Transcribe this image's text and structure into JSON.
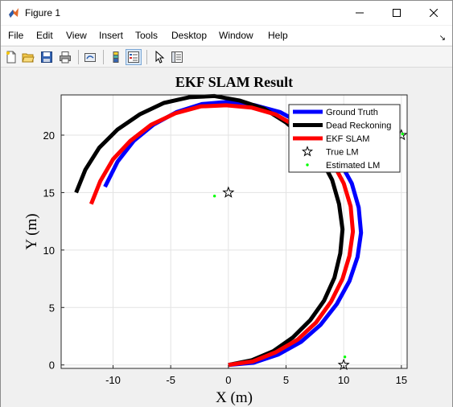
{
  "window": {
    "title": "Figure 1"
  },
  "menu": [
    "File",
    "Edit",
    "View",
    "Insert",
    "Tools",
    "Desktop",
    "Window",
    "Help"
  ],
  "toolbar": [
    "new-figure",
    "open-file",
    "save-figure",
    "print-figure",
    "link-plot",
    "insert-colorbar",
    "insert-legend",
    "edit-plot",
    "property-inspector"
  ],
  "chart_data": {
    "type": "line",
    "title": "EKF SLAM Result",
    "xlabel": "X (m)",
    "ylabel": "Y (m)",
    "xlim": [
      -14.5,
      15.5
    ],
    "ylim": [
      -0.3,
      23.5
    ],
    "xticks": [
      -10,
      -5,
      0,
      5,
      10,
      15
    ],
    "yticks": [
      0,
      5,
      10,
      15,
      20
    ],
    "grid": true,
    "legend_position": "top-right",
    "series": [
      {
        "name": "Ground Truth",
        "color": "#0000ff",
        "style": "thick-line",
        "points": [
          [
            0,
            0
          ],
          [
            2.2,
            0.2
          ],
          [
            4.3,
            0.9
          ],
          [
            6.3,
            2.0
          ],
          [
            8,
            3.5
          ],
          [
            9.4,
            5.3
          ],
          [
            10.5,
            7.3
          ],
          [
            11.2,
            9.4
          ],
          [
            11.5,
            11.5
          ],
          [
            11.3,
            13.7
          ],
          [
            10.7,
            15.8
          ],
          [
            9.6,
            17.8
          ],
          [
            8.2,
            19.5
          ],
          [
            6.5,
            20.9
          ],
          [
            4.5,
            22
          ],
          [
            2.3,
            22.6
          ],
          [
            0,
            22.9
          ],
          [
            -2.3,
            22.7
          ],
          [
            -4.5,
            22
          ],
          [
            -6.5,
            20.9
          ],
          [
            -8.2,
            19.5
          ],
          [
            -9.6,
            17.7
          ],
          [
            -10.7,
            15.5
          ]
        ]
      },
      {
        "name": "Dead Reckoning",
        "color": "#000000",
        "style": "thick-line",
        "points": [
          [
            0,
            0
          ],
          [
            2,
            0.4
          ],
          [
            3.9,
            1.2
          ],
          [
            5.6,
            2.4
          ],
          [
            7.1,
            3.9
          ],
          [
            8.3,
            5.6
          ],
          [
            9.2,
            7.6
          ],
          [
            9.7,
            9.7
          ],
          [
            9.9,
            11.8
          ],
          [
            9.6,
            14
          ],
          [
            9,
            16.1
          ],
          [
            8,
            18
          ],
          [
            6.6,
            19.7
          ],
          [
            5,
            21.1
          ],
          [
            3.1,
            22.3
          ],
          [
            1,
            23
          ],
          [
            -1.2,
            23.4
          ],
          [
            -3.4,
            23.3
          ],
          [
            -5.6,
            22.8
          ],
          [
            -7.7,
            21.8
          ],
          [
            -9.6,
            20.5
          ],
          [
            -11.2,
            18.9
          ],
          [
            -12.4,
            17
          ],
          [
            -13.2,
            15
          ]
        ]
      },
      {
        "name": "EKF SLAM",
        "color": "#ff0000",
        "style": "thick-line",
        "points": [
          [
            0,
            0
          ],
          [
            2.1,
            0.3
          ],
          [
            4.1,
            1.1
          ],
          [
            6,
            2.2
          ],
          [
            7.6,
            3.7
          ],
          [
            8.9,
            5.5
          ],
          [
            9.9,
            7.5
          ],
          [
            10.5,
            9.5
          ],
          [
            10.8,
            11.6
          ],
          [
            10.6,
            13.8
          ],
          [
            10,
            15.8
          ],
          [
            9,
            17.7
          ],
          [
            7.6,
            19.4
          ],
          [
            6,
            20.7
          ],
          [
            4.1,
            21.8
          ],
          [
            2,
            22.4
          ],
          [
            -0.2,
            22.6
          ],
          [
            -2.4,
            22.5
          ],
          [
            -4.6,
            21.9
          ],
          [
            -6.7,
            20.9
          ],
          [
            -8.5,
            19.5
          ],
          [
            -10,
            17.9
          ],
          [
            -11.1,
            16
          ],
          [
            -11.9,
            14
          ]
        ]
      },
      {
        "name": "True LM",
        "color": "#000000",
        "style": "star-marker",
        "points": [
          [
            0,
            15
          ],
          [
            10,
            0
          ],
          [
            15,
            20
          ]
        ]
      },
      {
        "name": "Estimated LM",
        "color": "#00ff00",
        "style": "dot-marker",
        "points": [
          [
            -1.2,
            14.7
          ],
          [
            10.1,
            0.7
          ],
          [
            15.1,
            20.1
          ]
        ]
      }
    ]
  }
}
